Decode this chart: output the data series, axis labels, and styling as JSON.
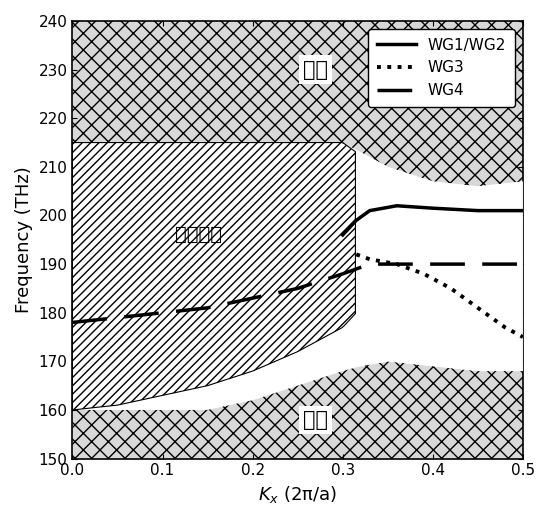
{
  "xlim": [
    0,
    0.5
  ],
  "ylim": [
    150,
    240
  ],
  "xlabel": "$K_x$ (2π/a)",
  "ylabel": "Frequency (THz)",
  "yticks": [
    150,
    160,
    170,
    180,
    190,
    200,
    210,
    220,
    230,
    240
  ],
  "xticks": [
    0,
    0.1,
    0.2,
    0.3,
    0.4,
    0.5
  ],
  "legend_labels": [
    "WG1/WG2",
    "WG3",
    "WG4"
  ],
  "label_tiband_top": "体带",
  "label_tiband_bottom": "体带",
  "label_aircone": "空气光锥",
  "upper_band_bottom_kx": [
    0.0,
    0.05,
    0.1,
    0.15,
    0.2,
    0.25,
    0.3,
    0.32,
    0.35,
    0.4,
    0.45,
    0.5
  ],
  "upper_band_bottom_f": [
    215,
    215,
    215,
    215,
    215,
    215,
    215,
    213,
    210,
    207,
    206,
    207
  ],
  "lower_band_top_kx": [
    0.0,
    0.05,
    0.1,
    0.15,
    0.2,
    0.25,
    0.3,
    0.32,
    0.35,
    0.4,
    0.45,
    0.5
  ],
  "lower_band_top_f": [
    160,
    160,
    160,
    160,
    162,
    165,
    168,
    169,
    170,
    169,
    168,
    168
  ],
  "aircone_bottom_kx": [
    0.0,
    0.05,
    0.1,
    0.15,
    0.2,
    0.25,
    0.3,
    0.315
  ],
  "aircone_bottom_f": [
    160,
    161,
    163,
    165,
    168,
    172,
    177,
    180
  ],
  "aircone_top_kx": [
    0.0,
    0.05,
    0.1,
    0.15,
    0.2,
    0.25,
    0.3,
    0.315
  ],
  "aircone_top_f": [
    215,
    215,
    215,
    215,
    215,
    215,
    215,
    213
  ],
  "wg1_kx": [
    0.3,
    0.315,
    0.33,
    0.36,
    0.4,
    0.45,
    0.5
  ],
  "wg1_f": [
    196,
    199,
    201,
    202,
    201.5,
    201,
    201
  ],
  "wg3_kx": [
    0.315,
    0.33,
    0.36,
    0.39,
    0.42,
    0.45,
    0.48,
    0.5
  ],
  "wg3_f": [
    192,
    191,
    190,
    188,
    185,
    181,
    177,
    175
  ],
  "wg4_kx": [
    0.0,
    0.05,
    0.1,
    0.15,
    0.2,
    0.25,
    0.3,
    0.315,
    0.33,
    0.36,
    0.4,
    0.45,
    0.5
  ],
  "wg4_f": [
    178,
    179,
    180,
    181,
    183,
    185,
    188,
    189,
    190,
    190,
    190,
    190,
    190
  ],
  "bg_color": "#d8d8d8",
  "hatch_bulk": "xxxx",
  "hatch_cone": "////",
  "figsize": [
    5.5,
    5.2
  ],
  "dpi": 100
}
